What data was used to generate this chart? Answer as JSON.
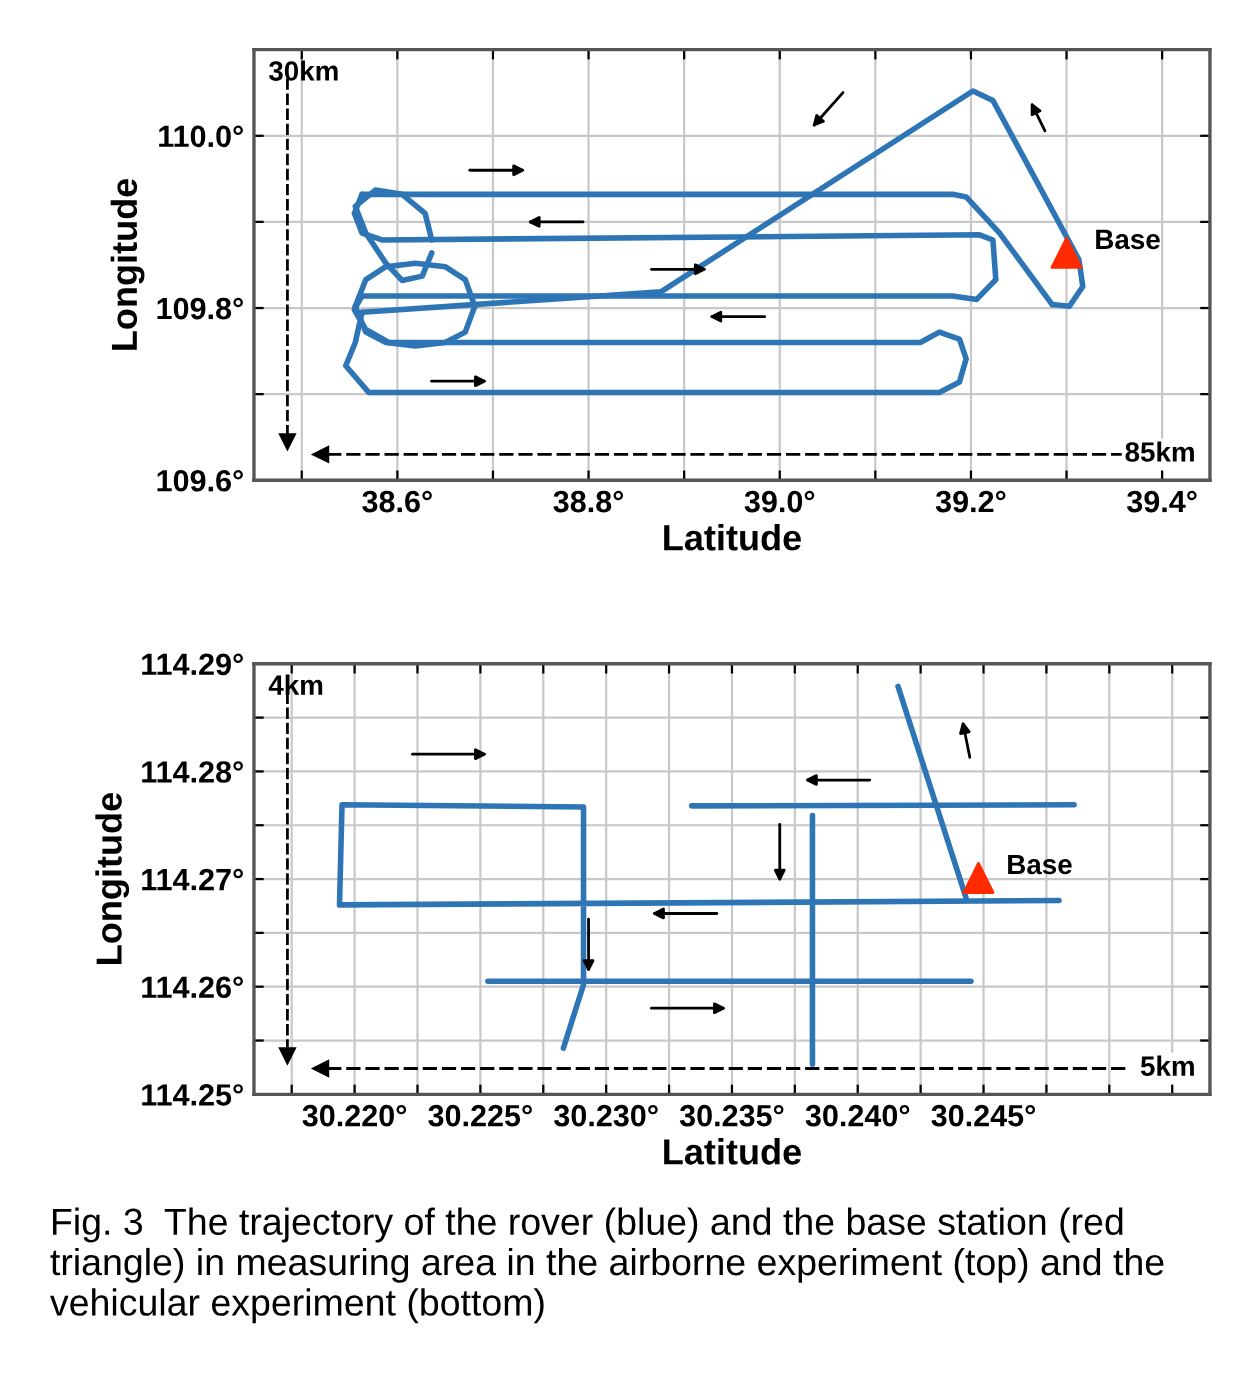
{
  "chart_data": [
    {
      "type": "line",
      "xlabel": "Latitude",
      "ylabel": "Longitude",
      "xlim": [
        38.45,
        39.45
      ],
      "ylim": [
        109.6,
        110.1
      ],
      "xticks": [
        {
          "value": 38.5,
          "label": null
        },
        {
          "value": 38.6,
          "label": "38.6°"
        },
        {
          "value": 38.7,
          "label": null
        },
        {
          "value": 38.8,
          "label": "38.8°"
        },
        {
          "value": 38.9,
          "label": null
        },
        {
          "value": 39.0,
          "label": "39.0°"
        },
        {
          "value": 39.1,
          "label": null
        },
        {
          "value": 39.2,
          "label": "39.2°"
        },
        {
          "value": 39.3,
          "label": null
        },
        {
          "value": 39.4,
          "label": "39.4°"
        }
      ],
      "yticks": [
        {
          "value": 109.6,
          "label": "109.6°"
        },
        {
          "value": 109.7,
          "label": null
        },
        {
          "value": 109.8,
          "label": "109.8°"
        },
        {
          "value": 109.9,
          "label": null
        },
        {
          "value": 110.0,
          "label": "110.0°"
        }
      ],
      "grid": true,
      "legend": false,
      "annotations": [
        "30km",
        "85km"
      ],
      "series": [
        {
          "type": "line",
          "color": "#2e75b6",
          "x": [
            39.285,
            39.23,
            39.195,
            39.181,
            38.563
          ],
          "values": [
            109.804,
            109.887,
            109.929,
            109.932,
            109.932
          ]
        },
        {
          "type": "line",
          "color": "#2e75b6",
          "x": [
            38.563,
            38.555,
            38.563,
            38.584,
            39.209,
            39.223,
            39.226,
            39.206,
            39.181,
            38.563
          ],
          "values": [
            109.932,
            109.91,
            109.887,
            109.879,
            109.885,
            109.879,
            109.833,
            109.81,
            109.814,
            109.814
          ]
        },
        {
          "type": "line",
          "color": "#2e75b6",
          "x": [
            38.563,
            38.555,
            38.567,
            38.591,
            39.147,
            39.167,
            39.188,
            39.195,
            39.188,
            39.167,
            38.57,
            38.546,
            38.556,
            38.563
          ],
          "values": [
            109.814,
            109.798,
            109.775,
            109.76,
            109.76,
            109.772,
            109.764,
            109.741,
            109.714,
            109.702,
            109.702,
            109.733,
            109.76,
            109.795
          ]
        },
        {
          "type": "line",
          "color": "#2e75b6",
          "x": [
            38.563,
            38.876,
            39.202,
            39.223,
            39.313,
            39.317,
            39.303,
            39.285
          ],
          "values": [
            109.795,
            109.819,
            110.052,
            110.041,
            109.856,
            109.825,
            109.802,
            109.804
          ]
        },
        {
          "type": "line",
          "color": "#2e75b6",
          "x": [
            38.681,
            38.671,
            38.65,
            38.619,
            38.588,
            38.567,
            38.556
          ],
          "values": [
            109.802,
            109.833,
            109.848,
            109.852,
            109.848,
            109.833,
            109.802
          ]
        },
        {
          "type": "line",
          "color": "#2e75b6",
          "x": [
            38.556,
            38.567,
            38.588,
            38.619,
            38.65,
            38.671,
            38.681
          ],
          "values": [
            109.802,
            109.772,
            109.76,
            109.756,
            109.76,
            109.772,
            109.802
          ]
        },
        {
          "type": "line",
          "color": "#2e75b6",
          "x": [
            38.636,
            38.629,
            38.605,
            38.577,
            38.556,
            38.567,
            38.588,
            38.605,
            38.626,
            38.636
          ],
          "values": [
            109.879,
            109.91,
            109.932,
            109.937,
            109.918,
            109.887,
            109.852,
            109.832,
            109.837,
            109.864
          ]
        },
        {
          "type": "scatter",
          "name": "Base",
          "color": "#ff2a00",
          "marker": "triangle",
          "x": [
            39.3
          ],
          "values": [
            109.864
          ]
        }
      ]
    },
    {
      "type": "line",
      "xlabel": "Latitude",
      "ylabel": "Longitude",
      "xlim": [
        30.216,
        30.254
      ],
      "ylim": [
        114.25,
        114.29
      ],
      "xticks": [
        {
          "value": 30.2175,
          "label": null
        },
        {
          "value": 30.22,
          "label": "30.220°"
        },
        {
          "value": 30.2225,
          "label": null
        },
        {
          "value": 30.225,
          "label": "30.225°"
        },
        {
          "value": 30.2275,
          "label": null
        },
        {
          "value": 30.23,
          "label": "30.230°"
        },
        {
          "value": 30.2325,
          "label": null
        },
        {
          "value": 30.235,
          "label": "30.235°"
        },
        {
          "value": 30.2375,
          "label": null
        },
        {
          "value": 30.24,
          "label": "30.240°"
        },
        {
          "value": 30.2425,
          "label": null
        },
        {
          "value": 30.245,
          "label": "30.245°"
        },
        {
          "value": 30.2475,
          "label": null
        },
        {
          "value": 30.25,
          "label": null
        },
        {
          "value": 30.2525,
          "label": null
        }
      ],
      "yticks": [
        {
          "value": 114.25,
          "label": "114.25°"
        },
        {
          "value": 114.255,
          "label": null
        },
        {
          "value": 114.26,
          "label": "114.26°"
        },
        {
          "value": 114.265,
          "label": null
        },
        {
          "value": 114.27,
          "label": "114.27°"
        },
        {
          "value": 114.275,
          "label": null
        },
        {
          "value": 114.28,
          "label": "114.28°"
        },
        {
          "value": 114.285,
          "label": null
        },
        {
          "value": 114.29,
          "label": "114.29°"
        }
      ],
      "grid": true,
      "legend": false,
      "annotations": [
        "4km",
        "5km",
        "Fig. 3  The trajectory of the rover (blue) and the base station (red triangle) in measuring area in the airborne experiment (top) and the vehicular experiment (bottom)"
      ],
      "series": [
        {
          "type": "line",
          "color": "#2e75b6",
          "x": [
            30.2283,
            30.2291,
            30.2291,
            30.2195,
            30.2194,
            30.248
          ],
          "values": [
            114.2543,
            114.2602,
            114.2767,
            114.2769,
            114.2676,
            114.268
          ]
        },
        {
          "type": "line",
          "color": "#2e75b6",
          "x": [
            30.2253,
            30.2445
          ],
          "values": [
            114.2605,
            114.2605
          ]
        },
        {
          "type": "line",
          "color": "#2e75b6",
          "x": [
            30.2382,
            30.2382
          ],
          "values": [
            114.2759,
            114.2528
          ]
        },
        {
          "type": "line",
          "color": "#2e75b6",
          "x": [
            30.2334,
            30.2486
          ],
          "values": [
            114.2768,
            114.2769
          ]
        },
        {
          "type": "line",
          "color": "#2e75b6",
          "x": [
            30.2416,
            30.2443
          ],
          "values": [
            114.2879,
            114.2683
          ]
        },
        {
          "type": "scatter",
          "name": "Base",
          "color": "#ff2a00",
          "marker": "triangle",
          "x": [
            30.2448
          ],
          "values": [
            114.2701
          ]
        }
      ]
    }
  ]
}
